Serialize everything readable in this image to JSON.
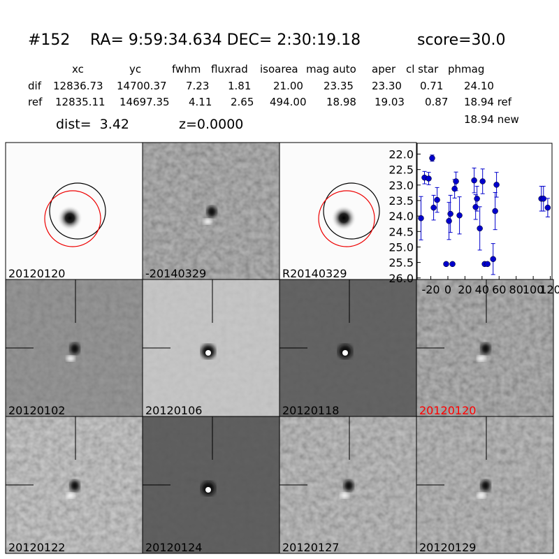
{
  "header": {
    "id": "#152",
    "coords": "RA= 9:59:34.634 DEC= 2:30:19.18",
    "score": "score=30.0"
  },
  "table": {
    "columns": [
      "xc",
      "yc",
      "fwhm",
      "fluxrad",
      "isoarea",
      "mag auto",
      "aper",
      "cl star",
      "phmag"
    ],
    "rows": [
      [
        "dif",
        "12836.73",
        "14700.37",
        "7.23",
        "1.81",
        "21.00",
        "23.35",
        "23.30",
        "0.71",
        "24.10"
      ],
      [
        "ref",
        "12835.11",
        "14697.35",
        "4.11",
        "2.65",
        "494.00",
        "18.98",
        "19.03",
        "0.87",
        "18.94 ref"
      ]
    ],
    "extra": "18.94 new"
  },
  "dist": "dist=  3.42",
  "z": "z=0.0000",
  "panels": [
    {
      "label": "20120120",
      "color": "#000000"
    },
    {
      "label": "-20140329",
      "color": "#000000"
    },
    {
      "label": "R20140329",
      "color": "#000000"
    },
    {
      "label": "20120102",
      "color": "#000000"
    },
    {
      "label": "20120106",
      "color": "#000000"
    },
    {
      "label": "20120118",
      "color": "#000000"
    },
    {
      "label": "20120120",
      "color": "#ff0000"
    },
    {
      "label": "20120122",
      "color": "#000000"
    },
    {
      "label": "20120124",
      "color": "#000000"
    },
    {
      "label": "20120127",
      "color": "#000000"
    },
    {
      "label": "20120129",
      "color": "#000000"
    }
  ],
  "light_curve": {
    "type": "errorbar",
    "color": "#0000cc",
    "x": [
      -31.5,
      -27.4,
      -22.5,
      -18.4,
      -16.7,
      -12.6,
      -2,
      5.4,
      1.3,
      3,
      7.9,
      9.5,
      13.6,
      30.8,
      32.5,
      34.1,
      37.4,
      40.7,
      43.1,
      46.4,
      53,
      55.4,
      57,
      109.5,
      112,
      117
    ],
    "values": [
      24.07,
      22.76,
      22.79,
      22.13,
      23.73,
      23.48,
      25.55,
      25.55,
      24.16,
      23.93,
      23.12,
      22.88,
      23.98,
      22.85,
      23.71,
      23.44,
      24.4,
      22.88,
      25.55,
      25.55,
      25.39,
      23.84,
      22.99,
      23.44,
      23.44,
      23.73
    ],
    "errors": [
      0.7,
      0.2,
      0.2,
      0.1,
      0.4,
      0.4,
      0.05,
      0.05,
      0.6,
      0.6,
      0.3,
      0.3,
      0.6,
      0.4,
      0.4,
      0.4,
      0.7,
      0.4,
      0.05,
      0.05,
      0.5,
      0.6,
      0.4,
      0.4,
      0.4,
      0.3
    ],
    "xlim": [
      -36,
      122
    ],
    "ylim": [
      26.05,
      21.65
    ],
    "xticks": [
      -20,
      0,
      20,
      40,
      60,
      80,
      100,
      120
    ],
    "yticks": [
      {
        "value": 22,
        "label": "22.0"
      },
      {
        "value": 22.5,
        "label": "22.5"
      },
      {
        "value": 23,
        "label": "23.0"
      },
      {
        "value": 23.5,
        "label": "23.5"
      },
      {
        "value": 24,
        "label": "24.0"
      },
      {
        "value": 24.5,
        "label": "24.5"
      },
      {
        "value": 25,
        "label": "25.0"
      },
      {
        "value": 25.5,
        "label": "25.5"
      },
      {
        "value": 26,
        "label": "26.0"
      }
    ]
  }
}
